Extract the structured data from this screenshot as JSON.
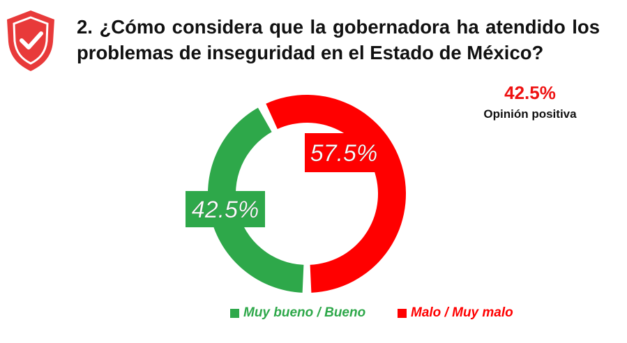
{
  "title": "2. ¿Cómo considera que la gobernadora ha atendido los problemas de inseguridad en el Estado de México?",
  "icon": "shield-check-icon",
  "summary": {
    "value": "42.5%",
    "label": "Opinión positiva"
  },
  "colors": {
    "green": "#2ea84a",
    "red": "#ff0000",
    "summary_red": "#ee1111"
  },
  "chart_data": {
    "type": "pie",
    "variant": "donut",
    "slices": [
      {
        "name": "Muy bueno / Bueno",
        "value": 42.5,
        "label": "42.5%",
        "color": "#2ea84a"
      },
      {
        "name": "Malo / Muy malo",
        "value": 57.5,
        "label": "57.5%",
        "color": "#ff0000"
      }
    ],
    "legend": "bottom"
  }
}
